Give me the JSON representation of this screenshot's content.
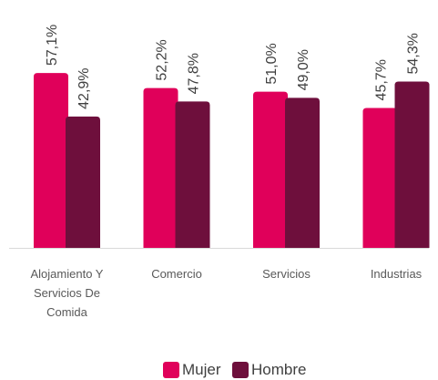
{
  "chart_data": {
    "type": "bar",
    "categories": [
      "Alojamiento Y Servicios De Comida",
      "Comercio",
      "Servicios",
      "Industrias"
    ],
    "series": [
      {
        "name": "Mujer",
        "color": "#e0005a",
        "values": [
          57.1,
          52.2,
          51.0,
          45.7
        ],
        "value_labels": [
          "57,1%",
          "52,2%",
          "51,0%",
          "45,7%"
        ]
      },
      {
        "name": "Hombre",
        "color": "#6e0f3c",
        "values": [
          42.9,
          47.8,
          49.0,
          54.3
        ],
        "value_labels": [
          "42,9%",
          "47,8%",
          "49,0%",
          "54,3%"
        ]
      }
    ]
  }
}
